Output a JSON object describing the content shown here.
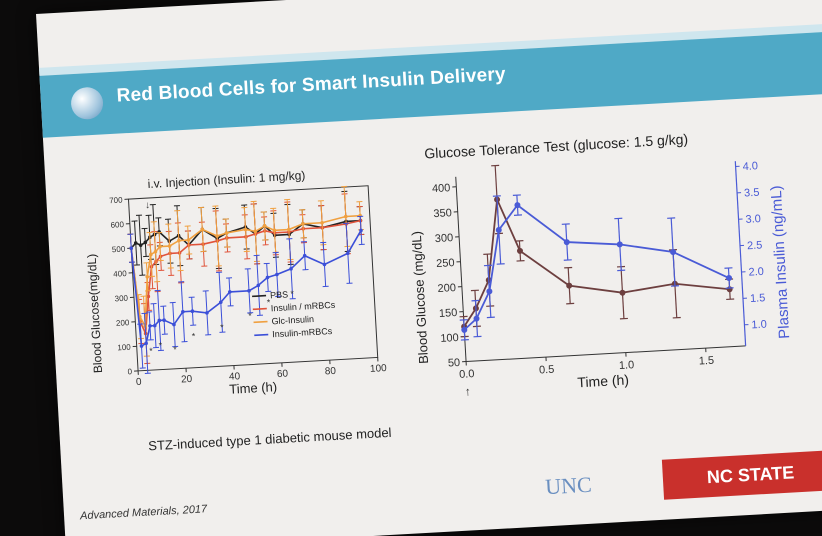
{
  "slide": {
    "title": "Red Blood Cells for Smart Insulin Delivery",
    "caption": "STZ-induced type 1 diabetic mouse model",
    "reference": "Advanced Materials, 2017",
    "logo_left": "UNC",
    "logo_right": "NC STATE"
  },
  "chart_data": [
    {
      "type": "line",
      "title": "i.v. Injection (Insulin: 1 mg/kg)",
      "xlabel": "Time (h)",
      "ylabel": "Blood Glucose(mg/dL)",
      "xlim": [
        0,
        100
      ],
      "ylim": [
        0,
        700
      ],
      "x_ticks": [
        "0",
        "20",
        "40",
        "60",
        "80",
        "100"
      ],
      "y_ticks": [
        "0",
        "100",
        "200",
        "300",
        "400",
        "500",
        "600",
        "700"
      ],
      "legend_position": "bottom-right",
      "series": [
        {
          "name": "PBS",
          "color": "#222222",
          "x": [
            0,
            2,
            4,
            6,
            8,
            10,
            12,
            16,
            20,
            24,
            30,
            36,
            40,
            48,
            52,
            56,
            60,
            66,
            72,
            80,
            90,
            96
          ],
          "y": [
            500,
            520,
            510,
            520,
            540,
            550,
            560,
            520,
            540,
            500,
            560,
            520,
            540,
            560,
            530,
            560,
            520,
            520,
            560,
            540,
            560,
            560
          ]
        },
        {
          "name": "Insulin / mRBCs",
          "color": "#e0533a",
          "x": [
            0,
            2,
            4,
            6,
            8,
            10,
            12,
            16,
            20,
            24,
            30,
            36,
            40,
            48,
            52,
            56,
            60,
            66,
            72,
            80,
            90,
            96
          ],
          "y": [
            500,
            200,
            150,
            300,
            420,
            440,
            460,
            470,
            470,
            500,
            500,
            510,
            520,
            520,
            530,
            540,
            530,
            530,
            540,
            540,
            550,
            560
          ]
        },
        {
          "name": "Glc-Insulin",
          "color": "#f0a040",
          "x": [
            0,
            2,
            4,
            6,
            8,
            10,
            12,
            16,
            20,
            24,
            30,
            36,
            40,
            48,
            52,
            56,
            60,
            66,
            72,
            80,
            90,
            96
          ],
          "y": [
            500,
            220,
            180,
            380,
            470,
            480,
            500,
            500,
            520,
            520,
            560,
            530,
            540,
            550,
            540,
            560,
            540,
            540,
            560,
            560,
            580,
            580
          ]
        },
        {
          "name": "Insulin-mRBCs",
          "color": "#3b4fd8",
          "x": [
            0,
            2,
            4,
            6,
            8,
            10,
            12,
            16,
            20,
            24,
            30,
            36,
            40,
            48,
            52,
            56,
            60,
            66,
            72,
            80,
            90,
            96
          ],
          "y": [
            500,
            100,
            110,
            180,
            180,
            200,
            200,
            180,
            230,
            230,
            220,
            260,
            300,
            300,
            320,
            350,
            360,
            380,
            430,
            390,
            430,
            520
          ]
        }
      ],
      "annotations": [
        "*"
      ]
    },
    {
      "type": "line",
      "title": "Glucose Tolerance Test (glucose: 1.5 g/kg)",
      "xlabel": "Time (h)",
      "ylabel": "Blood Glucose (mg/dL)",
      "y2label": "Plasma Insulin (ng/mL)",
      "xlim": [
        0,
        1.75
      ],
      "ylim": [
        50,
        420
      ],
      "y2lim": [
        0.6,
        4.1
      ],
      "x_ticks": [
        "0.0",
        "0.5",
        "1.0",
        "1.5"
      ],
      "y_ticks": [
        "50",
        "100",
        "150",
        "200",
        "250",
        "300",
        "350",
        "400"
      ],
      "y2_ticks": [
        "1.0",
        "1.5",
        "2.0",
        "2.5",
        "3.0",
        "3.5",
        "4.0"
      ],
      "series": [
        {
          "axis": "left",
          "color": "#6d3f3f",
          "x": [
            0,
            0.08,
            0.17,
            0.25,
            0.375,
            0.67,
            1.0,
            1.33,
            1.67
          ],
          "y": [
            120,
            155,
            210,
            370,
            265,
            190,
            170,
            182,
            165
          ]
        },
        {
          "axis": "right",
          "color": "#4a5bd6",
          "x": [
            0,
            0.08,
            0.17,
            0.25,
            0.375,
            0.67,
            1.0,
            1.33,
            1.67
          ],
          "y": [
            1.2,
            1.4,
            1.9,
            3.05,
            3.5,
            2.75,
            2.65,
            2.45,
            1.9
          ]
        }
      ]
    }
  ]
}
